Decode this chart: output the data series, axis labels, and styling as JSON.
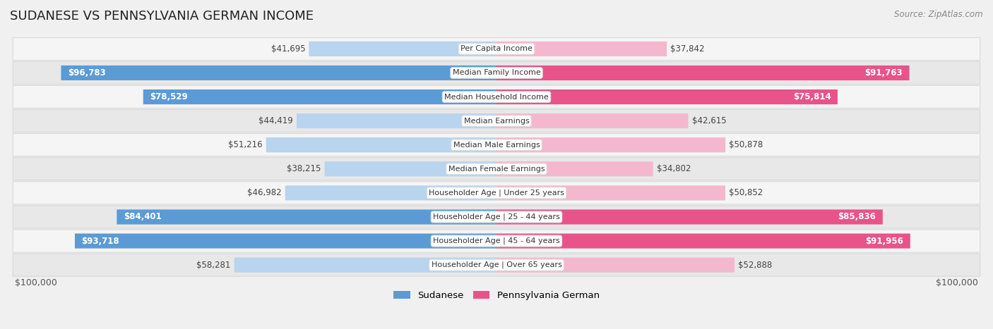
{
  "title": "SUDANESE VS PENNSYLVANIA GERMAN INCOME",
  "source": "Source: ZipAtlas.com",
  "categories": [
    "Per Capita Income",
    "Median Family Income",
    "Median Household Income",
    "Median Earnings",
    "Median Male Earnings",
    "Median Female Earnings",
    "Householder Age | Under 25 years",
    "Householder Age | 25 - 44 years",
    "Householder Age | 45 - 64 years",
    "Householder Age | Over 65 years"
  ],
  "sudanese_values": [
    41695,
    96783,
    78529,
    44419,
    51216,
    38215,
    46982,
    84401,
    93718,
    58281
  ],
  "pa_german_values": [
    37842,
    91763,
    75814,
    42615,
    50878,
    34802,
    50852,
    85836,
    91956,
    52888
  ],
  "sudanese_labels": [
    "$41,695",
    "$96,783",
    "$78,529",
    "$44,419",
    "$51,216",
    "$38,215",
    "$46,982",
    "$84,401",
    "$93,718",
    "$58,281"
  ],
  "pa_german_labels": [
    "$37,842",
    "$91,763",
    "$75,814",
    "$42,615",
    "$50,878",
    "$34,802",
    "$50,852",
    "$85,836",
    "$91,956",
    "$52,888"
  ],
  "sud_dark_threshold": 75000,
  "pa_dark_threshold": 75000,
  "sudanese_color_light": "#b8d4ee",
  "sudanese_color_dark": "#5b9bd5",
  "pa_german_color_light": "#f4b8ce",
  "pa_german_color_dark": "#e8538a",
  "max_value": 100000,
  "x_label_left": "$100,000",
  "x_label_right": "$100,000",
  "legend_sudanese": "Sudanese",
  "legend_pa_german": "Pennsylvania German",
  "bg_color": "#f0f0f0",
  "row_colors": [
    "#f5f5f5",
    "#e8e8e8"
  ]
}
